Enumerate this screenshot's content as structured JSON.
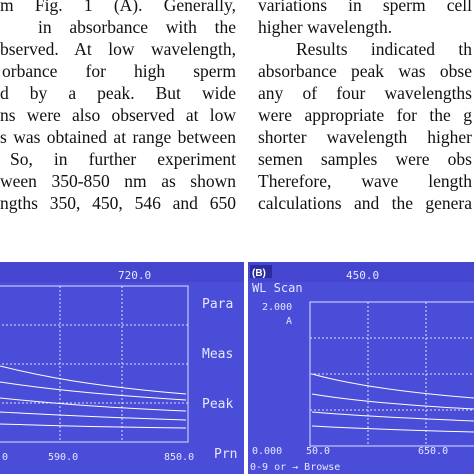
{
  "left_column": {
    "lines": [
      "m Fig. 1 (A). Generally,",
      "in absorbance with the",
      "bserved. At low wavelength,",
      "orbance for high sperm",
      "d by a peak. But wide",
      "ns were also observed at low",
      "s was obtained at range between",
      "So, in further experiment",
      "ween 350-850 nm as shown",
      "ngths 350, 450, 546 and 650"
    ]
  },
  "right_column": {
    "lines": [
      "variations in sperm cell",
      "higher wavelength.",
      "Results indicated th",
      "absorbance peak was obse",
      "any of four wavelengths",
      "were appropriate for the g",
      "shorter wavelength higher",
      "semen samples were obs",
      "Therefore, wave length",
      "calculations and the genera"
    ]
  },
  "figure_left": {
    "top_value": "720.0",
    "menu": [
      "Para",
      "Meas",
      "Peak",
      "Prn"
    ],
    "x_ticks": [
      "0",
      "590.0",
      "850.0"
    ],
    "colors": {
      "screen": "#4a4dd8",
      "grid": "#dfe0ff",
      "text": "#e6e7ff"
    }
  },
  "figure_right": {
    "panel_label": "(B)",
    "mode_title": "WL Scan",
    "top_value": "450.0",
    "y_max": "2.000",
    "y_unit": "A",
    "y_min": "0.000",
    "x_ticks": [
      "50.0",
      "650.0"
    ],
    "bottom_hint": "0-9 or → Browse",
    "colors": {
      "screen": "#4a4dd8",
      "grid": "#dfe0ff",
      "text": "#e6e7ff"
    }
  }
}
